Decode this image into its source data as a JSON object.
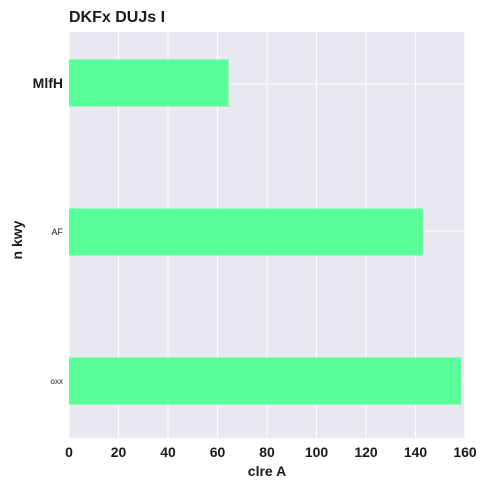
{
  "chart_data": {
    "type": "bar",
    "orientation": "horizontal",
    "title": "DKFx DUJs I",
    "xlabel": "clre A",
    "ylabel": "n  kwy",
    "categories": [
      "MlfH",
      "AF",
      "oxx"
    ],
    "values": [
      64.5,
      143,
      158.5
    ],
    "xlim": [
      0,
      160
    ],
    "xticks": [
      "0",
      "20",
      "40",
      "60",
      "80",
      "100",
      "120",
      "140",
      "160"
    ],
    "grid": true,
    "legend": "none",
    "colors": {
      "bar": "#59ff99",
      "plot_background": "#e8e8f0",
      "grid": "#ffffff"
    }
  }
}
